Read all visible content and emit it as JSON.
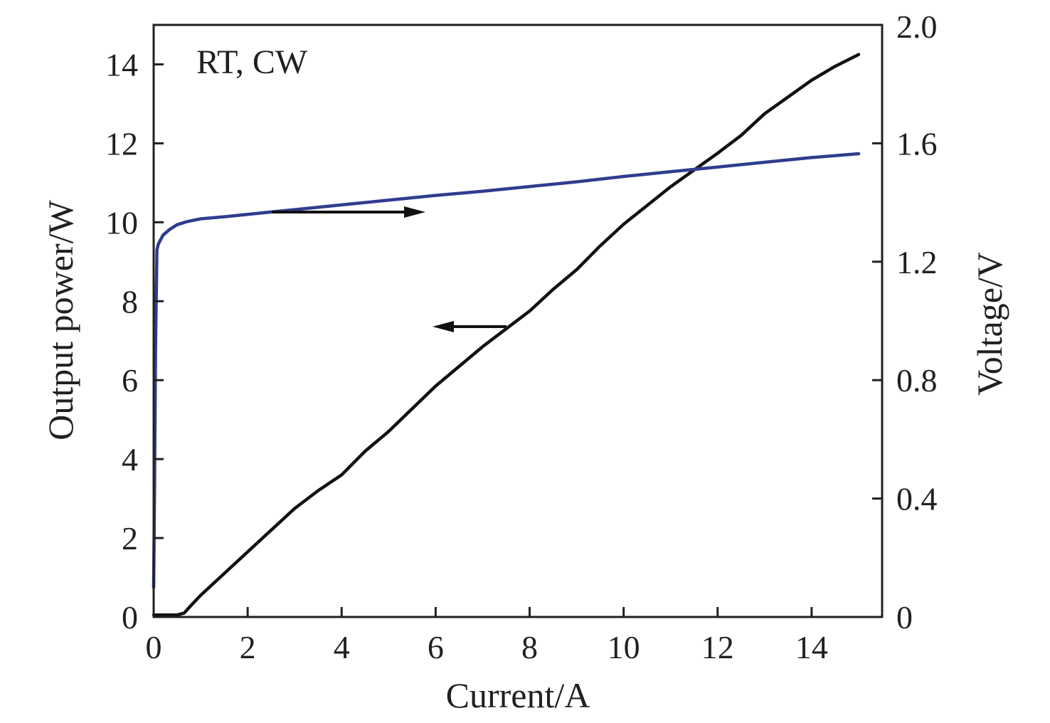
{
  "chart_data": {
    "type": "line",
    "title": "",
    "annotation": "RT, CW",
    "xlabel": "Current/A",
    "ylabel_left": "Output power/W",
    "ylabel_right": "Voltage/V",
    "xlim": [
      0,
      15.5
    ],
    "ylim_left": [
      0,
      15
    ],
    "ylim_right": [
      0,
      2.0
    ],
    "x_ticks": [
      "0",
      "2",
      "4",
      "6",
      "8",
      "10",
      "12",
      "14"
    ],
    "y_left_ticks": [
      "0",
      "2",
      "4",
      "6",
      "8",
      "10",
      "12",
      "14"
    ],
    "y_right_ticks": [
      "0",
      "0.4",
      "0.8",
      "1.2",
      "1.6",
      "2.0"
    ],
    "grid": false,
    "colors": {
      "power": "#111111",
      "voltage": "#2e3d8f",
      "axis": "#231f20"
    },
    "series": [
      {
        "axis": "left",
        "color": "#111111",
        "x": [
          0,
          0.5,
          0.65,
          0.8,
          1.0,
          1.5,
          2.0,
          3.0,
          3.5,
          4.0,
          4.5,
          5.0,
          6.0,
          7.0,
          8.0,
          8.5,
          9.0,
          9.5,
          10.0,
          11.0,
          12.0,
          12.5,
          13.0,
          14.0,
          14.5,
          15.0
        ],
        "y": [
          0.05,
          0.05,
          0.1,
          0.3,
          0.55,
          1.1,
          1.65,
          2.75,
          3.2,
          3.6,
          4.2,
          4.7,
          5.85,
          6.85,
          7.75,
          8.3,
          8.8,
          9.4,
          9.95,
          10.9,
          11.75,
          12.2,
          12.75,
          13.6,
          13.95,
          14.25
        ]
      },
      {
        "axis": "right",
        "color": "#2e3d8f",
        "x": [
          0,
          0.02,
          0.04,
          0.07,
          0.1,
          0.2,
          0.35,
          0.5,
          0.7,
          1.0,
          1.5,
          2.0,
          2.5,
          3.0,
          4.0,
          5.0,
          6.0,
          7.0,
          8.0,
          9.0,
          10.0,
          11.0,
          12.0,
          13.0,
          14.0,
          15.0
        ],
        "y": [
          0.1,
          0.45,
          0.9,
          1.24,
          1.26,
          1.29,
          1.31,
          1.325,
          1.335,
          1.345,
          1.352,
          1.36,
          1.368,
          1.376,
          1.392,
          1.408,
          1.424,
          1.438,
          1.454,
          1.47,
          1.488,
          1.504,
          1.52,
          1.536,
          1.552,
          1.565
        ]
      }
    ]
  }
}
